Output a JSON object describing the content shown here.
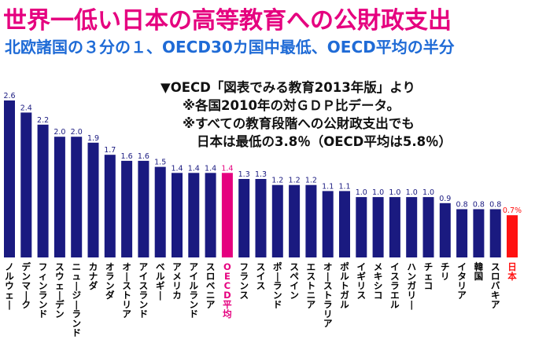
{
  "title": "世界一低い日本の高等教育への公財政支出",
  "subtitle": "北欧諸国の３分の１、OECD30カ国中最低、OECD平均の半分",
  "notes": [
    "▼OECD「図表でみる教育2013年版」より",
    "※各国2010年の対ＧＤＰ比データ。",
    "※すべての教育段階への公財政支出でも",
    "日本は最低の3.8％（OECD平均は5.8％）"
  ],
  "colors": {
    "bar": "#1a1a80",
    "oecd_bar": "#e5007f",
    "japan_bar": "#ff1111",
    "title": "#e5007f",
    "subtitle": "#1f6bd6"
  },
  "chart_data": {
    "type": "bar",
    "categories": [
      "ノルウェー",
      "デンマーク",
      "フィンランド",
      "スウェーデン",
      "ニュージーランド",
      "カナダ",
      "オランダ",
      "オーストリア",
      "アイスランド",
      "ベルギー",
      "アメリカ",
      "アイルランド",
      "スロベニア",
      "OECD平均",
      "フランス",
      "スイス",
      "ポーランド",
      "スペイン",
      "エストニア",
      "オーストラリア",
      "ポルトガル",
      "イギリス",
      "メキシコ",
      "イスラエル",
      "ハンガリー",
      "チェコ",
      "チリ",
      "イタリア",
      "韓国",
      "スロバキア",
      "日本"
    ],
    "values": [
      2.6,
      2.4,
      2.2,
      2.0,
      2.0,
      1.9,
      1.7,
      1.6,
      1.6,
      1.5,
      1.4,
      1.4,
      1.4,
      1.4,
      1.3,
      1.3,
      1.2,
      1.2,
      1.2,
      1.1,
      1.1,
      1.0,
      1.0,
      1.0,
      1.0,
      1.0,
      0.9,
      0.8,
      0.8,
      0.8,
      0.7
    ],
    "value_labels": [
      "2.6",
      "2.4",
      "2.2",
      "2.0",
      "2.0",
      "1.9",
      "1.7",
      "1.6",
      "1.6",
      "1.5",
      "1.4",
      "1.4",
      "1.4",
      "1.4",
      "1.3",
      "1.3",
      "1.2",
      "1.2",
      "1.2",
      "1.1",
      "1.1",
      "1.0",
      "1.0",
      "1.0",
      "1.0",
      "1.0",
      "0.9",
      "0.8",
      "0.8",
      "0.8",
      "0.7%"
    ],
    "highlight": {
      "OECD平均": "oecd",
      "日本": "japan"
    },
    "ylim": [
      0,
      2.6
    ],
    "xlabel": "",
    "ylabel": "",
    "grid": false,
    "legend": "none"
  }
}
